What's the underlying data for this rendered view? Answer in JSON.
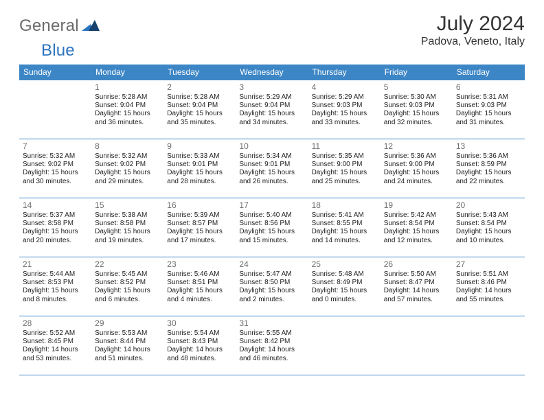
{
  "brand": {
    "part1": "General",
    "part2": "Blue"
  },
  "title": "July 2024",
  "location": "Padova, Veneto, Italy",
  "dayHeaders": [
    "Sunday",
    "Monday",
    "Tuesday",
    "Wednesday",
    "Thursday",
    "Friday",
    "Saturday"
  ],
  "colors": {
    "header_bg": "#3d86c6",
    "header_text": "#ffffff",
    "rule": "#3d86c6",
    "daynum": "#6f6f6f",
    "body_text": "#222222",
    "brand_gray": "#6b6b6b",
    "brand_blue": "#2b74c0"
  },
  "weeks": [
    [
      {
        "n": "",
        "sr": "",
        "ss": "",
        "dl1": "",
        "dl2": ""
      },
      {
        "n": "1",
        "sr": "Sunrise: 5:28 AM",
        "ss": "Sunset: 9:04 PM",
        "dl1": "Daylight: 15 hours",
        "dl2": "and 36 minutes."
      },
      {
        "n": "2",
        "sr": "Sunrise: 5:28 AM",
        "ss": "Sunset: 9:04 PM",
        "dl1": "Daylight: 15 hours",
        "dl2": "and 35 minutes."
      },
      {
        "n": "3",
        "sr": "Sunrise: 5:29 AM",
        "ss": "Sunset: 9:04 PM",
        "dl1": "Daylight: 15 hours",
        "dl2": "and 34 minutes."
      },
      {
        "n": "4",
        "sr": "Sunrise: 5:29 AM",
        "ss": "Sunset: 9:03 PM",
        "dl1": "Daylight: 15 hours",
        "dl2": "and 33 minutes."
      },
      {
        "n": "5",
        "sr": "Sunrise: 5:30 AM",
        "ss": "Sunset: 9:03 PM",
        "dl1": "Daylight: 15 hours",
        "dl2": "and 32 minutes."
      },
      {
        "n": "6",
        "sr": "Sunrise: 5:31 AM",
        "ss": "Sunset: 9:03 PM",
        "dl1": "Daylight: 15 hours",
        "dl2": "and 31 minutes."
      }
    ],
    [
      {
        "n": "7",
        "sr": "Sunrise: 5:32 AM",
        "ss": "Sunset: 9:02 PM",
        "dl1": "Daylight: 15 hours",
        "dl2": "and 30 minutes."
      },
      {
        "n": "8",
        "sr": "Sunrise: 5:32 AM",
        "ss": "Sunset: 9:02 PM",
        "dl1": "Daylight: 15 hours",
        "dl2": "and 29 minutes."
      },
      {
        "n": "9",
        "sr": "Sunrise: 5:33 AM",
        "ss": "Sunset: 9:01 PM",
        "dl1": "Daylight: 15 hours",
        "dl2": "and 28 minutes."
      },
      {
        "n": "10",
        "sr": "Sunrise: 5:34 AM",
        "ss": "Sunset: 9:01 PM",
        "dl1": "Daylight: 15 hours",
        "dl2": "and 26 minutes."
      },
      {
        "n": "11",
        "sr": "Sunrise: 5:35 AM",
        "ss": "Sunset: 9:00 PM",
        "dl1": "Daylight: 15 hours",
        "dl2": "and 25 minutes."
      },
      {
        "n": "12",
        "sr": "Sunrise: 5:36 AM",
        "ss": "Sunset: 9:00 PM",
        "dl1": "Daylight: 15 hours",
        "dl2": "and 24 minutes."
      },
      {
        "n": "13",
        "sr": "Sunrise: 5:36 AM",
        "ss": "Sunset: 8:59 PM",
        "dl1": "Daylight: 15 hours",
        "dl2": "and 22 minutes."
      }
    ],
    [
      {
        "n": "14",
        "sr": "Sunrise: 5:37 AM",
        "ss": "Sunset: 8:58 PM",
        "dl1": "Daylight: 15 hours",
        "dl2": "and 20 minutes."
      },
      {
        "n": "15",
        "sr": "Sunrise: 5:38 AM",
        "ss": "Sunset: 8:58 PM",
        "dl1": "Daylight: 15 hours",
        "dl2": "and 19 minutes."
      },
      {
        "n": "16",
        "sr": "Sunrise: 5:39 AM",
        "ss": "Sunset: 8:57 PM",
        "dl1": "Daylight: 15 hours",
        "dl2": "and 17 minutes."
      },
      {
        "n": "17",
        "sr": "Sunrise: 5:40 AM",
        "ss": "Sunset: 8:56 PM",
        "dl1": "Daylight: 15 hours",
        "dl2": "and 15 minutes."
      },
      {
        "n": "18",
        "sr": "Sunrise: 5:41 AM",
        "ss": "Sunset: 8:55 PM",
        "dl1": "Daylight: 15 hours",
        "dl2": "and 14 minutes."
      },
      {
        "n": "19",
        "sr": "Sunrise: 5:42 AM",
        "ss": "Sunset: 8:54 PM",
        "dl1": "Daylight: 15 hours",
        "dl2": "and 12 minutes."
      },
      {
        "n": "20",
        "sr": "Sunrise: 5:43 AM",
        "ss": "Sunset: 8:54 PM",
        "dl1": "Daylight: 15 hours",
        "dl2": "and 10 minutes."
      }
    ],
    [
      {
        "n": "21",
        "sr": "Sunrise: 5:44 AM",
        "ss": "Sunset: 8:53 PM",
        "dl1": "Daylight: 15 hours",
        "dl2": "and 8 minutes."
      },
      {
        "n": "22",
        "sr": "Sunrise: 5:45 AM",
        "ss": "Sunset: 8:52 PM",
        "dl1": "Daylight: 15 hours",
        "dl2": "and 6 minutes."
      },
      {
        "n": "23",
        "sr": "Sunrise: 5:46 AM",
        "ss": "Sunset: 8:51 PM",
        "dl1": "Daylight: 15 hours",
        "dl2": "and 4 minutes."
      },
      {
        "n": "24",
        "sr": "Sunrise: 5:47 AM",
        "ss": "Sunset: 8:50 PM",
        "dl1": "Daylight: 15 hours",
        "dl2": "and 2 minutes."
      },
      {
        "n": "25",
        "sr": "Sunrise: 5:48 AM",
        "ss": "Sunset: 8:49 PM",
        "dl1": "Daylight: 15 hours",
        "dl2": "and 0 minutes."
      },
      {
        "n": "26",
        "sr": "Sunrise: 5:50 AM",
        "ss": "Sunset: 8:47 PM",
        "dl1": "Daylight: 14 hours",
        "dl2": "and 57 minutes."
      },
      {
        "n": "27",
        "sr": "Sunrise: 5:51 AM",
        "ss": "Sunset: 8:46 PM",
        "dl1": "Daylight: 14 hours",
        "dl2": "and 55 minutes."
      }
    ],
    [
      {
        "n": "28",
        "sr": "Sunrise: 5:52 AM",
        "ss": "Sunset: 8:45 PM",
        "dl1": "Daylight: 14 hours",
        "dl2": "and 53 minutes."
      },
      {
        "n": "29",
        "sr": "Sunrise: 5:53 AM",
        "ss": "Sunset: 8:44 PM",
        "dl1": "Daylight: 14 hours",
        "dl2": "and 51 minutes."
      },
      {
        "n": "30",
        "sr": "Sunrise: 5:54 AM",
        "ss": "Sunset: 8:43 PM",
        "dl1": "Daylight: 14 hours",
        "dl2": "and 48 minutes."
      },
      {
        "n": "31",
        "sr": "Sunrise: 5:55 AM",
        "ss": "Sunset: 8:42 PM",
        "dl1": "Daylight: 14 hours",
        "dl2": "and 46 minutes."
      },
      {
        "n": "",
        "sr": "",
        "ss": "",
        "dl1": "",
        "dl2": ""
      },
      {
        "n": "",
        "sr": "",
        "ss": "",
        "dl1": "",
        "dl2": ""
      },
      {
        "n": "",
        "sr": "",
        "ss": "",
        "dl1": "",
        "dl2": ""
      }
    ]
  ]
}
